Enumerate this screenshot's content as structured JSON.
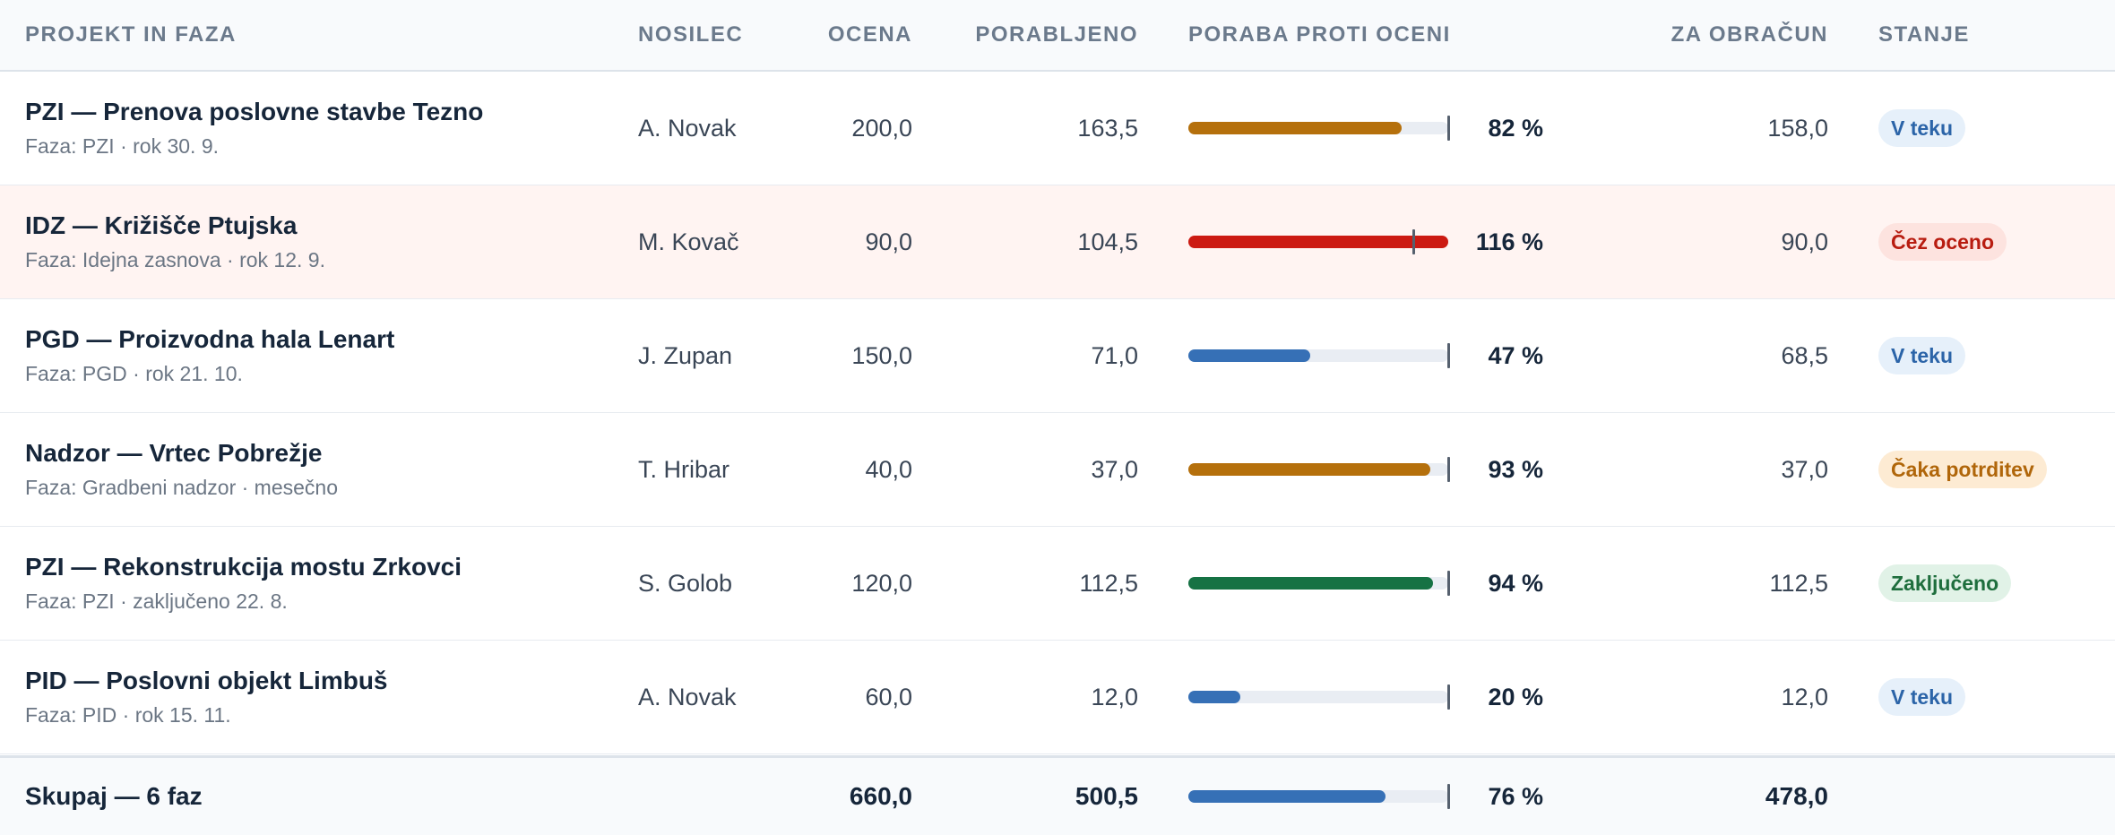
{
  "headers": {
    "project": "PROJEKT IN FAZA",
    "owner": "NOSILEC",
    "estimate": "OCENA",
    "spent": "PORABLJENO",
    "usage": "PORABA PROTI OCENI",
    "billable": "ZA OBRAČUN",
    "status": "STANJE"
  },
  "rows": [
    {
      "title": "PZI — Prenova poslovne stavbe Tezno",
      "sub": "Faza: PZI · rok 30. 9.",
      "owner": "A. Novak",
      "estimate": "200,0",
      "spent": "163,5",
      "pct_label": "82 %",
      "pct": 82,
      "bar_color": "#b5700c",
      "billable": "158,0",
      "status": "V teku",
      "status_kind": "teku",
      "over": false
    },
    {
      "title": "IDZ — Križišče Ptujska",
      "sub": "Faza: Idejna zasnova · rok 12. 9.",
      "owner": "M. Kovač",
      "estimate": "90,0",
      "spent": "104,5",
      "pct_label": "116 %",
      "pct": 116,
      "bar_color": "#cc1a12",
      "billable": "90,0",
      "status": "Čez oceno",
      "status_kind": "cez",
      "over": true
    },
    {
      "title": "PGD — Proizvodna hala Lenart",
      "sub": "Faza: PGD · rok 21. 10.",
      "owner": "J. Zupan",
      "estimate": "150,0",
      "spent": "71,0",
      "pct_label": "47 %",
      "pct": 47,
      "bar_color": "#3670b6",
      "billable": "68,5",
      "status": "V teku",
      "status_kind": "teku",
      "over": false
    },
    {
      "title": "Nadzor — Vrtec Pobrežje",
      "sub": "Faza: Gradbeni nadzor · mesečno",
      "owner": "T. Hribar",
      "estimate": "40,0",
      "spent": "37,0",
      "pct_label": "93 %",
      "pct": 93,
      "bar_color": "#b5700c",
      "billable": "37,0",
      "status": "Čaka potrditev",
      "status_kind": "caka",
      "over": false
    },
    {
      "title": "PZI — Rekonstrukcija mostu Zrkovci",
      "sub": "Faza: PZI · zaključeno 22. 8.",
      "owner": "S. Golob",
      "estimate": "120,0",
      "spent": "112,5",
      "pct_label": "94 %",
      "pct": 94,
      "bar_color": "#167244",
      "billable": "112,5",
      "status": "Zaključeno",
      "status_kind": "zak",
      "over": false
    },
    {
      "title": "PID — Poslovni objekt Limbuš",
      "sub": "Faza: PID · rok 15. 11.",
      "owner": "A. Novak",
      "estimate": "60,0",
      "spent": "12,0",
      "pct_label": "20 %",
      "pct": 20,
      "bar_color": "#3670b6",
      "billable": "12,0",
      "status": "V teku",
      "status_kind": "teku",
      "over": false
    }
  ],
  "footer": {
    "label": "Skupaj — 6 faz",
    "estimate": "660,0",
    "spent": "500,5",
    "pct_label": "76 %",
    "pct": 76,
    "bar_color": "#3670b6",
    "billable": "478,0"
  }
}
